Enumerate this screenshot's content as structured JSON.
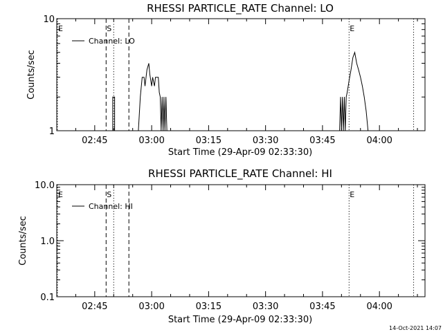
{
  "chart_data": [
    {
      "type": "line",
      "title": "RHESSI PARTICLE_RATE Channel: LO",
      "xlabel": "Start Time (29-Apr-09 02:33:30)",
      "ylabel": "Counts/sec",
      "yscale": "log",
      "ylim": [
        1,
        10
      ],
      "xlim": [
        "02:35",
        "04:12"
      ],
      "xticks": [
        "02:45",
        "03:00",
        "03:15",
        "03:30",
        "03:45",
        "04:00"
      ],
      "yticks": [
        "1",
        "10"
      ],
      "legend": {
        "placement": "top-left",
        "entries": [
          "Channel: LO"
        ]
      },
      "markers": [
        {
          "label": "E",
          "time": "02:33:30",
          "style": "dotted"
        },
        {
          "label": "S",
          "time": "02:48",
          "style": "dashed"
        },
        {
          "label": "",
          "time": "02:50",
          "style": "dotted"
        },
        {
          "label": "",
          "time": "02:54",
          "style": "dashed"
        },
        {
          "label": "E",
          "time": "03:52",
          "style": "dotted"
        },
        {
          "label": "",
          "time": "04:09",
          "style": "dotted"
        }
      ],
      "series": [
        {
          "name": "Channel: LO",
          "points": [
            [
              "02:49:45",
              1
            ],
            [
              "02:49:45",
              2
            ],
            [
              "02:50:15",
              2
            ],
            [
              "02:50:15",
              1
            ],
            [
              "02:56:30",
              1
            ],
            [
              "02:57:00",
              2
            ],
            [
              "02:57:30",
              3
            ],
            [
              "02:58:00",
              3
            ],
            [
              "02:58:15",
              2.5
            ],
            [
              "02:58:45",
              3.5
            ],
            [
              "02:59:15",
              4
            ],
            [
              "02:59:30",
              3.2
            ],
            [
              "03:00:00",
              2.5
            ],
            [
              "03:00:15",
              3
            ],
            [
              "03:00:45",
              2.5
            ],
            [
              "03:01:00",
              3
            ],
            [
              "03:01:45",
              3
            ],
            [
              "03:02:00",
              2.2
            ],
            [
              "03:02:15",
              2
            ],
            [
              "03:02:30",
              1
            ],
            [
              "03:02:45",
              2
            ],
            [
              "03:03:00",
              1
            ],
            [
              "03:03:15",
              2
            ],
            [
              "03:03:30",
              1
            ],
            [
              "03:03:45",
              2
            ],
            [
              "03:04:00",
              1
            ],
            [
              "03:49:30",
              1
            ],
            [
              "03:49:45",
              2
            ],
            [
              "03:50:00",
              1
            ],
            [
              "03:50:15",
              2
            ],
            [
              "03:50:30",
              1
            ],
            [
              "03:50:45",
              2
            ],
            [
              "03:51:00",
              1
            ],
            [
              "03:51:15",
              2
            ],
            [
              "03:51:30",
              2.2
            ],
            [
              "03:52:00",
              2.8
            ],
            [
              "03:52:30",
              3.5
            ],
            [
              "03:53:00",
              4.5
            ],
            [
              "03:53:30",
              5
            ],
            [
              "03:54:00",
              4
            ],
            [
              "03:54:30",
              3.5
            ],
            [
              "03:55:00",
              3
            ],
            [
              "03:55:30",
              2.5
            ],
            [
              "03:56:00",
              2
            ],
            [
              "03:56:30",
              1.5
            ],
            [
              "03:57:00",
              1
            ]
          ]
        }
      ]
    },
    {
      "type": "line",
      "title": "RHESSI PARTICLE_RATE Channel: HI",
      "xlabel": "Start Time (29-Apr-09 02:33:30)",
      "ylabel": "Counts/sec",
      "yscale": "log",
      "ylim": [
        0.1,
        10
      ],
      "xlim": [
        "02:35",
        "04:12"
      ],
      "xticks": [
        "02:45",
        "03:00",
        "03:15",
        "03:30",
        "03:45",
        "04:00"
      ],
      "yticks": [
        "0.1",
        "1.0",
        "10.0"
      ],
      "legend": {
        "placement": "top-left",
        "entries": [
          "Channel: HI"
        ]
      },
      "markers": [
        {
          "label": "E",
          "time": "02:33:30",
          "style": "dotted"
        },
        {
          "label": "S",
          "time": "02:48",
          "style": "dashed"
        },
        {
          "label": "",
          "time": "02:50",
          "style": "dotted"
        },
        {
          "label": "",
          "time": "02:54",
          "style": "dashed"
        },
        {
          "label": "E",
          "time": "03:52",
          "style": "dotted"
        },
        {
          "label": "",
          "time": "04:09",
          "style": "dotted"
        }
      ],
      "series": [
        {
          "name": "Channel: HI",
          "points": []
        }
      ]
    }
  ],
  "footer": {
    "stamp": "14-Oct-2021 14:07"
  }
}
